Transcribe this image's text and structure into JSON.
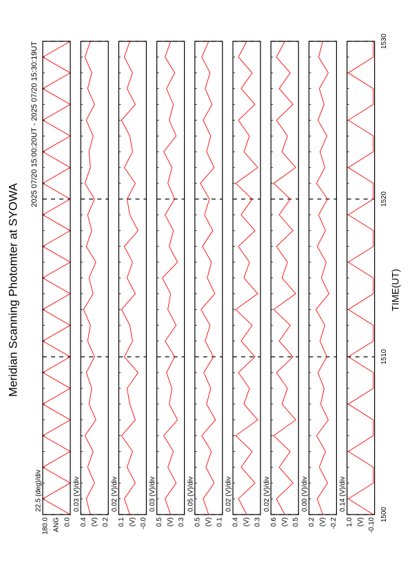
{
  "chart_data": {
    "type": "line",
    "title": "Meridian Scanning Photomter at SYOWA",
    "subtitle": "2025 07/20 15:00:20UT - 2025 07/20 15:30:19UT",
    "xlabel": "TIME(UT)",
    "x": [
      1500,
      1501,
      1502,
      1503,
      1504,
      1505,
      1506,
      1507,
      1508,
      1509,
      1510,
      1511,
      1512,
      1513,
      1514,
      1515,
      1516,
      1517,
      1518,
      1519,
      1520,
      1521,
      1522,
      1523,
      1524,
      1525,
      1526,
      1527,
      1528,
      1529,
      1530
    ],
    "xlim": [
      1500,
      1530
    ],
    "xticks": [
      1500,
      1510,
      1520,
      1530
    ],
    "grid": true,
    "panels": [
      {
        "ylabel": "ANG",
        "scale_label": "22.5 (deg)/div",
        "ylim": [
          0,
          180
        ],
        "yticks": [
          {
            "value": 0,
            "label": "0.0"
          },
          {
            "value": 180,
            "label": "180.0"
          }
        ],
        "series": [
          {
            "color": "#ff0000",
            "values": [
              0,
              180,
              0,
              180,
              0,
              180,
              0,
              180,
              0,
              180,
              0,
              180,
              0,
              180,
              0,
              180,
              0,
              180,
              0,
              180,
              0,
              180,
              0,
              180,
              0,
              180,
              0,
              180,
              0,
              180,
              0
            ]
          }
        ]
      },
      {
        "ylabel": "(V)",
        "scale_label": "0.03 (V)/div",
        "ylim": [
          0.2,
          0.4
        ],
        "yticks": [
          0.2,
          0.4
        ],
        "series": [
          {
            "color": "#ff0000",
            "values": [
              0.33,
              0.36,
              0.3,
              0.35,
              0.31,
              0.37,
              0.29,
              0.34,
              0.32,
              0.36,
              0.3,
              0.35,
              0.33,
              0.38,
              0.31,
              0.34,
              0.29,
              0.36,
              0.32,
              0.35,
              0.3,
              0.37,
              0.33,
              0.34,
              0.31,
              0.36,
              0.3,
              0.35,
              0.32,
              0.37,
              0.33
            ]
          }
        ]
      },
      {
        "ylabel": "(V)",
        "scale_label": "0.02 (V)/div",
        "ylim": [
          0,
          0.1
        ],
        "yticks": [
          {
            "value": 0,
            "label": "-0.0"
          },
          0.1
        ],
        "series": [
          {
            "color": "#ff0000",
            "values": [
              0.06,
              0.08,
              0.04,
              0.07,
              0.05,
              0.09,
              0.04,
              0.06,
              0.07,
              0.03,
              0.08,
              0.05,
              0.06,
              0.09,
              0.04,
              0.07,
              0.05,
              0.08,
              0.03,
              0.06,
              0.07,
              0.04,
              0.08,
              0.05,
              0.06,
              0.09,
              0.04,
              0.07,
              0.05,
              0.08,
              0.06
            ]
          }
        ]
      },
      {
        "ylabel": "(V)",
        "scale_label": "0.03 (V)/div",
        "ylim": [
          0.3,
          0.5
        ],
        "yticks": [
          0.3,
          0.5
        ],
        "series": [
          {
            "color": "#ff0000",
            "values": [
              0.4,
              0.44,
              0.36,
              0.42,
              0.38,
              0.45,
              0.35,
              0.41,
              0.39,
              0.43,
              0.37,
              0.44,
              0.36,
              0.42,
              0.4,
              0.46,
              0.35,
              0.41,
              0.38,
              0.44,
              0.37,
              0.42,
              0.39,
              0.45,
              0.36,
              0.41,
              0.38,
              0.43,
              0.37,
              0.44,
              0.4
            ]
          }
        ]
      },
      {
        "ylabel": "(V)",
        "scale_label": "0.05 (V)/div",
        "ylim": [
          0.1,
          0.5
        ],
        "yticks": [
          0.1,
          0.5
        ],
        "series": [
          {
            "color": "#ff0000",
            "values": [
              0.3,
              0.38,
              0.22,
              0.34,
              0.26,
              0.4,
              0.2,
              0.33,
              0.27,
              0.37,
              0.23,
              0.35,
              0.28,
              0.41,
              0.21,
              0.32,
              0.26,
              0.39,
              0.24,
              0.36,
              0.29,
              0.42,
              0.22,
              0.33,
              0.27,
              0.38,
              0.25,
              0.35,
              0.28,
              0.4,
              0.3
            ]
          }
        ]
      },
      {
        "ylabel": "(V)",
        "scale_label": "0.02 (V)/div",
        "ylim": [
          0.3,
          0.4
        ],
        "yticks": [
          0.3,
          0.4
        ],
        "series": [
          {
            "color": "#ff0000",
            "values": [
              0.35,
              0.38,
              0.32,
              0.37,
              0.33,
              0.39,
              0.31,
              0.36,
              0.34,
              0.38,
              0.32,
              0.37,
              0.33,
              0.39,
              0.31,
              0.36,
              0.34,
              0.38,
              0.32,
              0.37,
              0.33,
              0.39,
              0.31,
              0.36,
              0.34,
              0.38,
              0.32,
              0.37,
              0.33,
              0.38,
              0.35
            ]
          }
        ]
      },
      {
        "ylabel": "(V)",
        "scale_label": "0.02 (V)/div",
        "ylim": [
          0.5,
          0.6
        ],
        "yticks": [
          0.5,
          0.6
        ],
        "series": [
          {
            "color": "#ff0000",
            "values": [
              0.55,
              0.58,
              0.52,
              0.57,
              0.53,
              0.59,
              0.51,
              0.56,
              0.54,
              0.58,
              0.52,
              0.57,
              0.53,
              0.59,
              0.51,
              0.56,
              0.54,
              0.58,
              0.52,
              0.57,
              0.53,
              0.59,
              0.51,
              0.56,
              0.54,
              0.58,
              0.52,
              0.57,
              0.53,
              0.58,
              0.55
            ]
          }
        ]
      },
      {
        "ylabel": "(V)",
        "scale_label": "0.00 (V)/div",
        "ylim": [
          -0.2,
          0.2
        ],
        "yticks": [
          -0.2,
          0.2
        ],
        "series": [
          {
            "color": "#ff0000",
            "values": [
              0.0,
              0.08,
              -0.07,
              0.05,
              -0.04,
              0.09,
              -0.08,
              0.03,
              -0.02,
              0.07,
              -0.06,
              0.04,
              -0.03,
              0.1,
              -0.09,
              0.02,
              -0.05,
              0.08,
              -0.04,
              0.06,
              -0.07,
              0.09,
              -0.03,
              0.04,
              -0.06,
              0.07,
              -0.02,
              0.05,
              -0.08,
              0.06,
              0.0
            ]
          }
        ]
      },
      {
        "ylabel": "(V)",
        "scale_label": "0.14 (V)/div",
        "ylim": [
          -0.1,
          1.0
        ],
        "yticks": [
          {
            "value": -0.1,
            "label": "-0.10"
          },
          {
            "value": 1.0,
            "label": "1.0"
          }
        ],
        "series": [
          {
            "color": "#ff0000",
            "values": [
              -0.05,
              0.95,
              -0.05,
              -0.05,
              0.95,
              -0.05,
              -0.05,
              0.95,
              -0.05,
              -0.05,
              0.95,
              -0.05,
              -0.05,
              0.95,
              -0.05,
              -0.05,
              0.95,
              -0.05,
              -0.05,
              0.95,
              -0.05,
              -0.05,
              0.95,
              -0.05,
              -0.05,
              0.95,
              -0.05,
              -0.05,
              0.95,
              -0.05,
              -0.05
            ]
          }
        ]
      }
    ]
  }
}
